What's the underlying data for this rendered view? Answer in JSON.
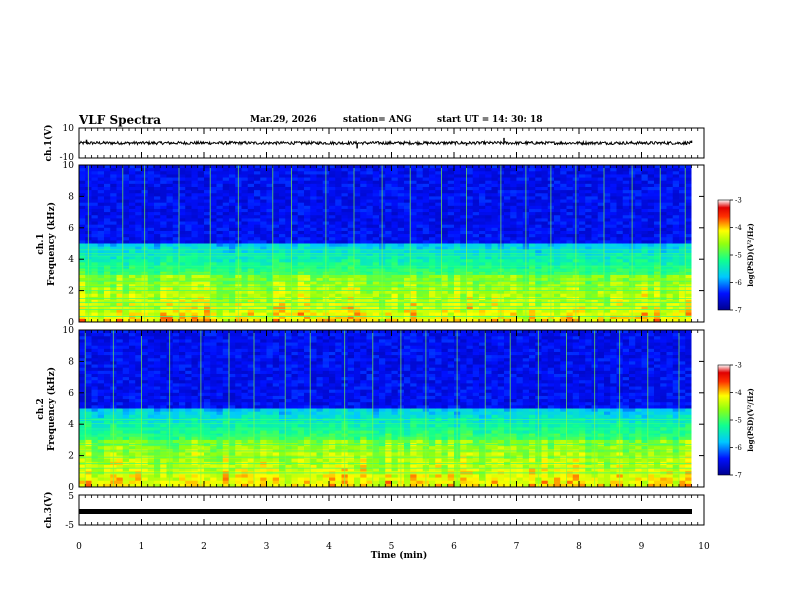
{
  "header": {
    "title": "VLF Spectra",
    "date": "Mar.29, 2026",
    "station": "station= ANG",
    "start_label": "start  UT =",
    "start_time": "14: 30: 18"
  },
  "chart_data": [
    {
      "type": "line",
      "name": "ch1-waveform",
      "ylabel": "ch.1(V)",
      "ylim": [
        -10,
        10
      ],
      "yticks": [
        "10",
        "-10"
      ],
      "baseline": 0,
      "noise_amplitude": 2,
      "spikes": [
        {
          "t": 0.12,
          "v": 2.2
        },
        {
          "t": 4.45,
          "v": -3.6
        },
        {
          "t": 6.8,
          "v": 3.4
        },
        {
          "t": 6.2,
          "v": -1.8
        },
        {
          "t": 9.8,
          "v": 1.6
        }
      ]
    },
    {
      "type": "heatmap",
      "name": "ch1-spectrogram",
      "ylabel": "ch.1\nFrequency (kHz)",
      "ylabel_line1": "ch.1",
      "ylabel_line2": "Frequency (kHz)",
      "ylim": [
        0,
        10
      ],
      "yticks": [
        "0",
        "2",
        "4",
        "6",
        "8",
        "10"
      ],
      "colorbar": {
        "label": "log(PSD)(V²/Hz)",
        "range": [
          -7,
          -3
        ],
        "ticks": [
          "-3",
          "-4",
          "-5",
          "-6",
          "-7"
        ]
      },
      "lines_khz": [
        0.35,
        0.8,
        1.0,
        1.25,
        1.5,
        2.0,
        2.25,
        2.6,
        3.05,
        3.3,
        3.55,
        4.2,
        4.35,
        4.6
      ],
      "sferic_times": [
        0.15,
        0.7,
        1.05,
        1.6,
        2.1,
        2.55,
        3.1,
        3.4,
        3.95,
        4.4,
        4.85,
        5.3,
        5.8,
        6.2,
        6.75,
        7.15,
        7.55,
        7.95,
        8.4,
        8.85,
        9.3,
        9.7
      ]
    },
    {
      "type": "heatmap",
      "name": "ch2-spectrogram",
      "ylabel": "ch.2\nFrequency (kHz)",
      "ylabel_line1": "ch.2",
      "ylabel_line2": "Frequency (kHz)",
      "ylim": [
        0,
        10
      ],
      "yticks": [
        "0",
        "2",
        "4",
        "6",
        "8",
        "10"
      ],
      "colorbar": {
        "label": "log(PSD)(V²/Hz)",
        "range": [
          -7,
          -3
        ],
        "ticks": [
          "-3",
          "-4",
          "-5",
          "-6",
          "-7"
        ]
      },
      "lines_khz": [
        0.9,
        1.2,
        1.5,
        1.9,
        2.3,
        2.7,
        3.25,
        3.7,
        4.05,
        4.3
      ],
      "sferic_times": [
        0.1,
        0.55,
        1.0,
        1.45,
        1.95,
        2.4,
        2.8,
        3.3,
        3.7,
        4.25,
        4.7,
        5.15,
        5.55,
        6.05,
        6.5,
        6.9,
        7.35,
        7.8,
        8.25,
        8.65,
        9.1,
        9.6
      ]
    },
    {
      "type": "line",
      "name": "ch3-waveform",
      "ylabel": "ch.3(V)",
      "ylim": [
        -5,
        5
      ],
      "yticks": [
        "5",
        "-5"
      ],
      "baseline": -1,
      "xlabel": "Time (min)",
      "xlim": [
        0,
        10
      ],
      "xticks": [
        "0",
        "1",
        "2",
        "3",
        "4",
        "5",
        "6",
        "7",
        "8",
        "9",
        "10"
      ]
    }
  ]
}
